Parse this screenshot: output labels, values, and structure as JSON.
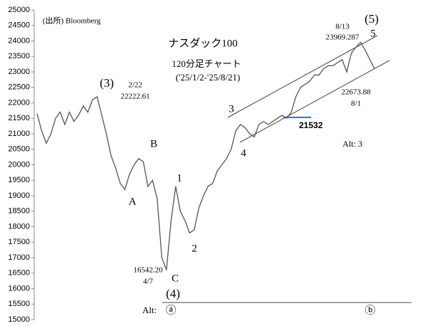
{
  "chart_data": {
    "type": "line",
    "ylim": [
      15000,
      25000
    ],
    "yticks": [
      15000,
      15500,
      16000,
      16500,
      17000,
      17500,
      18000,
      18500,
      19000,
      19500,
      20000,
      20500,
      21000,
      21500,
      22000,
      22500,
      23000,
      23500,
      24000,
      24500,
      25000
    ],
    "series": [
      {
        "color": "#555555",
        "values": [
          21650,
          21100,
          20700,
          21000,
          21500,
          21700,
          21300,
          21700,
          21400,
          21600,
          21900,
          21700,
          22100,
          22200,
          21600,
          21000,
          20300,
          19900,
          19400,
          19200,
          19700,
          20000,
          20200,
          20100,
          19300,
          19500,
          18900,
          17000,
          16600,
          18200,
          19300,
          18500,
          18200,
          17800,
          17900,
          18600,
          19000,
          19300,
          19400,
          19800,
          20000,
          20200,
          20500,
          21100,
          21300,
          21200,
          21000,
          20900,
          21300,
          21400,
          21300,
          21400,
          21500,
          21600,
          21500,
          21700,
          22200,
          22500,
          22600,
          22700,
          22900,
          22900,
          23100,
          23200,
          23200,
          23300,
          23400,
          23000,
          23600,
          23800,
          23950,
          23700,
          23400,
          23100
        ]
      }
    ],
    "hline": {
      "value": 21532,
      "color": "#2e75b6"
    },
    "annotations": [
      "(出所) Bloomberg",
      "ナスダック100",
      "120分足チャート",
      "('25/1/2-'25/8/21)",
      "(3)",
      "2/22",
      "22222.61",
      "B",
      "A",
      "1",
      "2",
      "C",
      "16542.20",
      "4/7",
      "(4)",
      "Alt:",
      "ⓐ",
      "ⓑ",
      "3",
      "4",
      "5",
      "(5)",
      "8/13",
      "23969.287",
      "22673.88",
      "8/1",
      "Alt:  3"
    ]
  }
}
